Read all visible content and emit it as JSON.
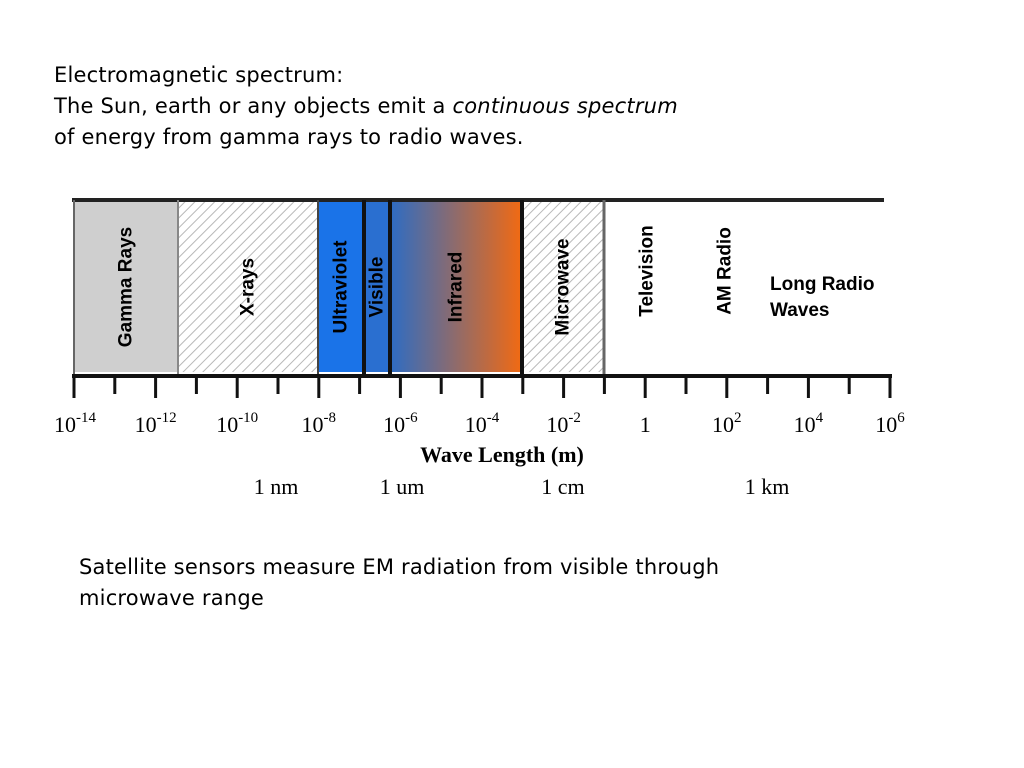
{
  "intro": {
    "line1": "Electromagnetic spectrum:",
    "line2_prefix": "The Sun, earth or any objects emit a ",
    "line2_emphasis": "continuous spectrum",
    "line3": "of energy from gamma rays to radio waves."
  },
  "diagram": {
    "bands": [
      {
        "name": "Gamma Rays",
        "fill": "#cfcfcf",
        "pattern": "none"
      },
      {
        "name": "X-rays",
        "fill": "#ffffff",
        "pattern": "hatch"
      },
      {
        "name": "Ultraviolet",
        "fill": "#1a73e8",
        "pattern": "none"
      },
      {
        "name": "Visible",
        "fill": "#2a6fd0",
        "pattern": "none"
      },
      {
        "name": "Infrared",
        "fill_gradient": [
          "#2d6cc4",
          "#f26a12"
        ],
        "pattern": "none"
      },
      {
        "name": "Microwave",
        "fill": "#ffffff",
        "pattern": "hatch"
      },
      {
        "name": "Television",
        "fill": "#ffffff",
        "pattern": "none"
      },
      {
        "name": "AM Radio",
        "fill": "#ffffff",
        "pattern": "none"
      }
    ],
    "long_radio_label": [
      "Long Radio",
      "Waves"
    ],
    "tick_labels": [
      {
        "base": "10",
        "exp": "-14"
      },
      {
        "base": "10",
        "exp": "-12"
      },
      {
        "base": "10",
        "exp": "-10"
      },
      {
        "base": "10",
        "exp": "-8"
      },
      {
        "base": "10",
        "exp": "-6"
      },
      {
        "base": "10",
        "exp": "-4"
      },
      {
        "base": "10",
        "exp": "-2"
      },
      {
        "base": "1",
        "exp": ""
      },
      {
        "base": "10",
        "exp": "2"
      },
      {
        "base": "10",
        "exp": "4"
      },
      {
        "base": "10",
        "exp": "6"
      }
    ],
    "axis_title": "Wave Length (m)",
    "reference_labels": [
      "1 nm",
      "1 um",
      "1 cm",
      "1 km"
    ]
  },
  "note": {
    "line1": "Satellite sensors measure EM radiation from visible through",
    "line2": "microwave range"
  }
}
